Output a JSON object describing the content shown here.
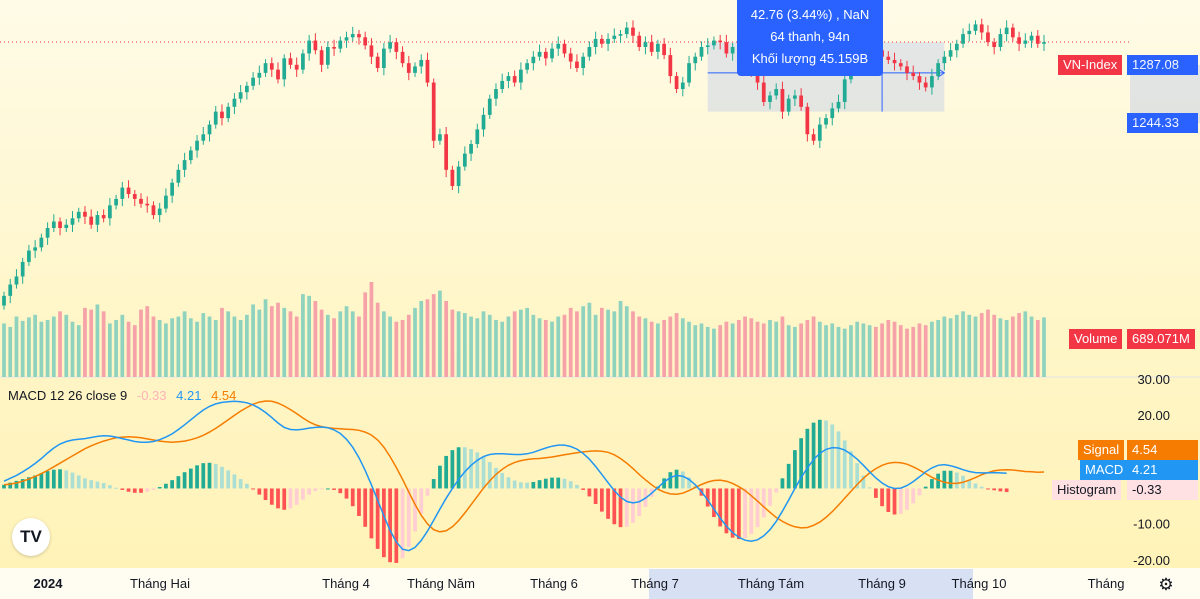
{
  "chart_data": [
    {
      "type": "candlestick",
      "series_name": "VN-Index",
      "last_value": "1287.08",
      "range_low_value": "1244.33",
      "price_ylim": [
        1120,
        1310
      ],
      "x_labels": [
        "2024",
        "Tháng Hai",
        "Tháng 4",
        "Tháng Năm",
        "Tháng 6",
        "Tháng 7",
        "Tháng Tám",
        "Tháng 9",
        "Tháng 10",
        "Tháng"
      ],
      "closes": [
        1130,
        1137,
        1142,
        1151,
        1158,
        1160,
        1166,
        1172,
        1176,
        1172,
        1174,
        1178,
        1182,
        1179,
        1174,
        1180,
        1178,
        1186,
        1190,
        1197,
        1193,
        1190,
        1187,
        1186,
        1180,
        1184,
        1192,
        1200,
        1208,
        1214,
        1220,
        1226,
        1230,
        1236,
        1244,
        1240,
        1247,
        1252,
        1256,
        1260,
        1265,
        1268,
        1274,
        1270,
        1264,
        1277,
        1273,
        1270,
        1280,
        1288,
        1282,
        1273,
        1284,
        1283,
        1288,
        1290,
        1292,
        1290,
        1285,
        1278,
        1271,
        1283,
        1287,
        1281,
        1274,
        1268,
        1272,
        1276,
        1262,
        1226,
        1230,
        1208,
        1198,
        1210,
        1218,
        1224,
        1233,
        1242,
        1252,
        1258,
        1263,
        1266,
        1262,
        1270,
        1274,
        1278,
        1281,
        1277,
        1283,
        1286,
        1280,
        1275,
        1271,
        1278,
        1284,
        1289,
        1286,
        1289,
        1291,
        1292,
        1296,
        1291,
        1284,
        1287,
        1281,
        1286,
        1279,
        1266,
        1258,
        1262,
        1274,
        1278,
        1284,
        1285,
        1288,
        1287,
        1280,
        1284,
        1277,
        1275,
        1268,
        1262,
        1250,
        1254,
        1258,
        1244,
        1252,
        1254,
        1247,
        1230,
        1226,
        1236,
        1240,
        1246,
        1250,
        1264,
        1272,
        1276,
        1280,
        1283,
        1282,
        1278,
        1276,
        1274,
        1272,
        1268,
        1266,
        1262,
        1259,
        1266,
        1274,
        1278,
        1282,
        1286,
        1292,
        1294,
        1298,
        1293,
        1287,
        1284,
        1292,
        1296,
        1290,
        1286,
        1288,
        1291,
        1286,
        1287
      ],
      "volume_label": "Volume",
      "volume_last": "689.071M",
      "volume_max_millions": 1100,
      "volumes_millions": [
        620,
        580,
        700,
        650,
        690,
        720,
        640,
        660,
        700,
        760,
        720,
        640,
        600,
        800,
        780,
        840,
        760,
        620,
        660,
        720,
        640,
        600,
        780,
        820,
        700,
        660,
        620,
        680,
        700,
        760,
        680,
        640,
        740,
        700,
        660,
        800,
        760,
        700,
        660,
        720,
        840,
        780,
        900,
        820,
        860,
        800,
        760,
        700,
        960,
        940,
        880,
        780,
        720,
        680,
        760,
        820,
        760,
        700,
        980,
        1100,
        860,
        760,
        700,
        640,
        660,
        720,
        800,
        880,
        900,
        960,
        1000,
        880,
        780,
        760,
        740,
        700,
        680,
        760,
        720,
        660,
        640,
        700,
        760,
        780,
        800,
        720,
        680,
        660,
        640,
        700,
        720,
        800,
        760,
        820,
        860,
        720,
        800,
        780,
        760,
        880,
        820,
        760,
        700,
        680,
        640,
        620,
        660,
        700,
        740,
        680,
        640,
        600,
        620,
        580,
        560,
        600,
        640,
        620,
        660,
        700,
        680,
        640,
        620,
        660,
        640,
        700,
        600,
        580,
        620,
        660,
        700,
        640,
        600,
        620,
        580,
        560,
        600,
        640,
        620,
        600,
        580,
        620,
        660,
        640,
        600,
        560,
        580,
        620,
        600,
        640,
        660,
        700,
        680,
        720,
        760,
        720,
        700,
        740,
        780,
        720,
        680,
        660,
        700,
        740,
        760,
        700,
        660,
        690
      ],
      "volume_colors": {
        "up": "#8fd3bf",
        "down": "#f5a3a9"
      },
      "tooltip": {
        "line1": "42.76 (3.44%) , NaN",
        "line2": "64 thanh, 94n",
        "line3": "Khối lượng 45.159B"
      },
      "colors": {
        "up": "#22ab94",
        "down": "#f23645",
        "last_tag": "#f23645",
        "measure": "#2962ff"
      }
    },
    {
      "type": "line",
      "title": "MACD 12 26 close 9",
      "legend_values": [
        "-0.33",
        "4.21",
        "4.54"
      ],
      "ylim": [
        -22,
        30
      ],
      "ticks": [
        "30.00",
        "20.00",
        "-10.00",
        "-20.00"
      ],
      "tick_values": [
        30,
        20,
        -10,
        -20
      ],
      "series": [
        {
          "name": "Signal",
          "last": "4.54",
          "color": "#f57c00",
          "values": [
            1,
            1.2,
            1.5,
            2,
            2.6,
            3.3,
            4.1,
            5,
            6,
            7,
            8,
            9,
            10,
            11,
            11.8,
            12.5,
            13.1,
            13.6,
            14,
            14.2,
            14.3,
            14.2,
            14,
            13.7,
            13.4,
            13.1,
            12.9,
            12.8,
            12.9,
            13.1,
            13.5,
            14,
            14.7,
            15.6,
            16.6,
            17.8,
            19,
            20.2,
            21.4,
            22.4,
            23.3,
            23.9,
            24.2,
            24.1,
            23.6,
            22.8,
            21.8,
            20.7,
            19.5,
            18.4,
            17.6,
            17.1,
            16.8,
            16.6,
            16.5,
            16.4,
            16.3,
            16.1,
            15.6,
            14.8,
            13.4,
            11.4,
            8.8,
            5.8,
            2.5,
            -1,
            -4.4,
            -7.4,
            -9.8,
            -11.4,
            -12,
            -11.7,
            -10.6,
            -8.9,
            -6.8,
            -4.5,
            -2.2,
            0.1,
            2.1,
            3.9,
            5.3,
            6.4,
            7.2,
            7.7,
            8,
            8.2,
            8.3,
            8.5,
            8.7,
            9,
            9.3,
            9.6,
            9.9,
            10.1,
            10.3,
            10.4,
            10.3,
            10,
            9.3,
            8.3,
            7,
            5.5,
            3.9,
            2.4,
            1,
            -0.2,
            -1,
            -1.5,
            -1.6,
            -1.3,
            -0.6,
            0.3,
            1.1,
            1.8,
            2.2,
            2.3,
            2,
            1.4,
            0.5,
            -0.6,
            -2,
            -3.5,
            -5.1,
            -6.6,
            -8,
            -9.1,
            -10,
            -10.6,
            -10.9,
            -10.8,
            -10.2,
            -9.3,
            -8,
            -6.4,
            -4.6,
            -2.7,
            -0.8,
            1.1,
            2.8,
            4.3,
            5.5,
            6.4,
            7,
            7.2,
            7.1,
            6.7,
            6,
            5.1,
            4.1,
            3.1,
            2.3,
            1.7,
            1.4,
            1.4,
            1.7,
            2.3,
            3,
            3.8,
            4.4,
            4.9,
            5.1,
            5.2,
            5.1,
            4.9,
            4.7,
            4.6,
            4.5,
            4.54
          ]
        },
        {
          "name": "MACD",
          "last": "4.21",
          "color": "#2196f3",
          "values": [
            2,
            2.8,
            3.6,
            4.6,
            5.7,
            6.9,
            8.3,
            9.8,
            11.2,
            12.3,
            13,
            13.4,
            13.6,
            13.8,
            14.1,
            14.4,
            14.6,
            14.5,
            14.2,
            13.8,
            13.4,
            13,
            12.8,
            12.8,
            13,
            13.5,
            14.2,
            15.1,
            16.3,
            17.6,
            19,
            20.4,
            21.7,
            22.7,
            23.4,
            23.8,
            24,
            24.1,
            24,
            23.7,
            23.1,
            22.2,
            21,
            19.6,
            18.1,
            16.9,
            16.3,
            16.2,
            16.4,
            16.7,
            16.9,
            17,
            16.8,
            16.2,
            15.2,
            13.6,
            11.4,
            8.5,
            5,
            1,
            -3.3,
            -7.6,
            -11.6,
            -14.8,
            -16.8,
            -17.2,
            -16.3,
            -14.4,
            -11.8,
            -8.8,
            -5.7,
            -2.7,
            0,
            2.5,
            4.6,
            6.4,
            7.8,
            8.8,
            9.4,
            9.6,
            9.6,
            9.5,
            9.4,
            9.4,
            9.6,
            10,
            10.6,
            11.2,
            11.7,
            12,
            12,
            11.6,
            10.9,
            9.7,
            8.1,
            6.1,
            3.9,
            1.6,
            -0.6,
            -2.4,
            -3.6,
            -4,
            -3.7,
            -2.7,
            -1.3,
            0.3,
            1.8,
            3,
            3.6,
            3.4,
            2.5,
            1,
            -0.9,
            -3.2,
            -5.7,
            -8.2,
            -10.4,
            -12.2,
            -13.5,
            -14.3,
            -14.6,
            -14.2,
            -13.1,
            -11.4,
            -9.1,
            -6.3,
            -3.2,
            0,
            3,
            5.7,
            8,
            9.7,
            10.8,
            11.3,
            11.2,
            10.6,
            9.5,
            8.1,
            6.4,
            4.6,
            2.9,
            1.5,
            0.5,
            0,
            0.1,
            0.8,
            1.9,
            3.2,
            4.6,
            5.7,
            6.4,
            6.6,
            6.3,
            5.8,
            5.2,
            4.7,
            4.4,
            4.3,
            4.3,
            4.4,
            4.3,
            4.21
          ]
        }
      ],
      "histogram": {
        "name": "Histogram",
        "last": "-0.33",
        "colors": {
          "pos": "#22ab94",
          "pos_fading": "#acdfd3",
          "neg": "#ff5252",
          "neg_fading": "#ffcdd2"
        }
      }
    }
  ]
}
